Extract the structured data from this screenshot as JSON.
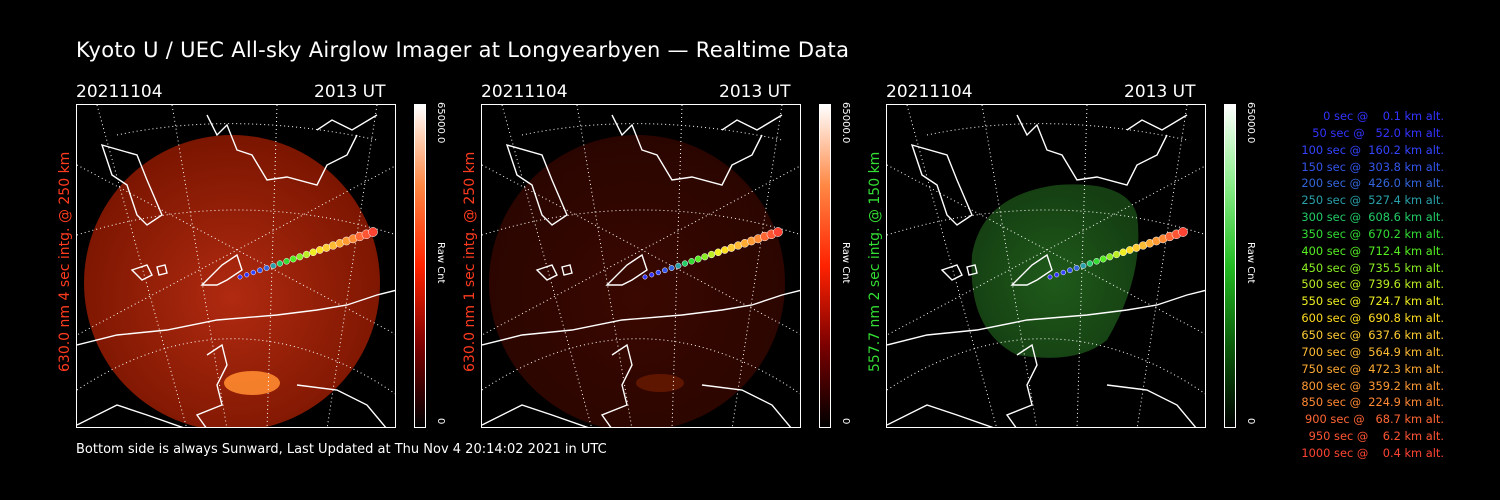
{
  "title": "Kyoto U / UEC All-sky Airglow Imager at Longyearbyen — Realtime Data",
  "footer": "Bottom side is always Sunward, Last Updated at Thu Nov  4 20:14:02 2021 in UTC",
  "panels": [
    {
      "date": "20211104",
      "time": "2013 UT",
      "side_label": "630.0 nm 4 sec intg. @ 250 km",
      "cbar_max": "65000.0",
      "cbar_min": "0",
      "cbar_unit": "Raw Cnt",
      "color": "#ff3b1f",
      "tint": "red",
      "brightness": "bright"
    },
    {
      "date": "20211104",
      "time": "2013 UT",
      "side_label": "630.0 nm 1 sec intg. @ 250 km",
      "cbar_max": "65000.0",
      "cbar_min": "0",
      "cbar_unit": "Raw Cnt",
      "color": "#ff3b1f",
      "tint": "red",
      "brightness": "dim"
    },
    {
      "date": "20211104",
      "time": "2013 UT",
      "side_label": "557.7 nm 2 sec intg. @ 150 km",
      "cbar_max": "65000.0",
      "cbar_min": "0",
      "cbar_unit": "Raw Cnt",
      "color": "#33dd33",
      "tint": "green",
      "brightness": "medium"
    }
  ],
  "trajectory_legend": [
    {
      "text": "0 sec @    0.1 km alt.",
      "color": "#3333ff"
    },
    {
      "text": "50 sec @   52.0 km alt.",
      "color": "#3333ff"
    },
    {
      "text": "100 sec @  160.2 km alt.",
      "color": "#3344ff"
    },
    {
      "text": "150 sec @  303.8 km alt.",
      "color": "#3355ee"
    },
    {
      "text": "200 sec @  426.0 km alt.",
      "color": "#3366dd"
    },
    {
      "text": "250 sec @  527.4 km alt.",
      "color": "#2aa0aa"
    },
    {
      "text": "300 sec @  608.6 km alt.",
      "color": "#22cc66"
    },
    {
      "text": "350 sec @  670.2 km alt.",
      "color": "#33dd33"
    },
    {
      "text": "400 sec @  712.4 km alt.",
      "color": "#55ee22"
    },
    {
      "text": "450 sec @  735.5 km alt.",
      "color": "#88ee22"
    },
    {
      "text": "500 sec @  739.6 km alt.",
      "color": "#bbee22"
    },
    {
      "text": "550 sec @  724.7 km alt.",
      "color": "#eeee22"
    },
    {
      "text": "600 sec @  690.8 km alt.",
      "color": "#ffdd22"
    },
    {
      "text": "650 sec @  637.6 km alt.",
      "color": "#ffcc33"
    },
    {
      "text": "700 sec @  564.9 km alt.",
      "color": "#ffbb33"
    },
    {
      "text": "750 sec @  472.3 km alt.",
      "color": "#ffaa33"
    },
    {
      "text": "800 sec @  359.2 km alt.",
      "color": "#ff9933"
    },
    {
      "text": "850 sec @  224.9 km alt.",
      "color": "#ff8833"
    },
    {
      "text": "900 sec @   68.7 km alt.",
      "color": "#ff6633"
    },
    {
      "text": "950 sec @    6.2 km alt.",
      "color": "#ff5533"
    },
    {
      "text": "1000 sec @    0.4 km alt.",
      "color": "#ff4433"
    }
  ]
}
